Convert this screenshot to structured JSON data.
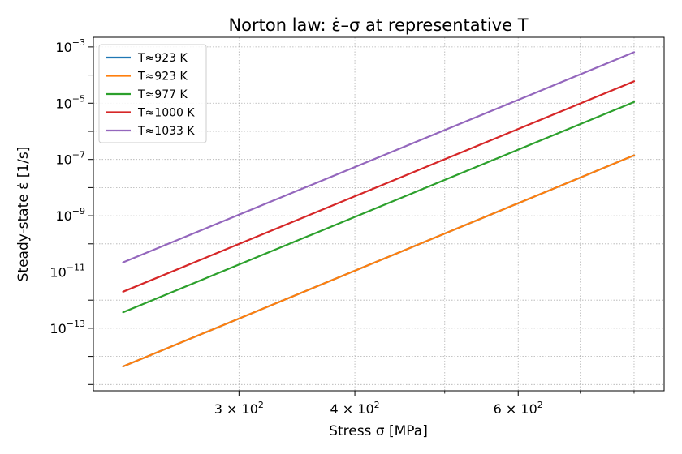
{
  "chart_data": {
    "type": "line",
    "title": "Norton law: ε̇–σ at representative T",
    "xlabel": "Stress σ [MPa]",
    "ylabel": "Steady-state ε̇ [1/s]",
    "xscale": "log",
    "yscale": "log",
    "xlim": [
      209,
      862
    ],
    "ylim": [
      6e-16,
      0.0022
    ],
    "grid": true,
    "legend_loc": "upper left",
    "x_major_ticks": [
      {
        "value": 300,
        "mantissa": "3",
        "base": "10",
        "exp": "2"
      },
      {
        "value": 400,
        "mantissa": "4",
        "base": "10",
        "exp": "2"
      },
      {
        "value": 600,
        "mantissa": "6",
        "base": "10",
        "exp": "2"
      }
    ],
    "x_minor_ticks": [
      500,
      700,
      800
    ],
    "y_ticks": [
      {
        "value": 0.001,
        "base": "10",
        "exp": "−3"
      },
      {
        "value": 1e-05,
        "base": "10",
        "exp": "−5"
      },
      {
        "value": 1e-07,
        "base": "10",
        "exp": "−7"
      },
      {
        "value": 1e-09,
        "base": "10",
        "exp": "−9"
      },
      {
        "value": 1e-11,
        "base": "10",
        "exp": "−11"
      },
      {
        "value": 1e-13,
        "base": "10",
        "exp": "−13"
      }
    ],
    "x": [
      225,
      800
    ],
    "series": [
      {
        "name": "T≈923 K",
        "color": "#1f77b4",
        "values": [
          4.4e-15,
          1.4e-07
        ]
      },
      {
        "name": "T≈923 K",
        "color": "#ff7f0e",
        "values": [
          4.4e-15,
          1.4e-07
        ]
      },
      {
        "name": "T≈977 K",
        "color": "#2ca02c",
        "values": [
          3.7e-13,
          1.1e-05
        ]
      },
      {
        "name": "T≈1000 K",
        "color": "#d62728",
        "values": [
          2e-12,
          6e-05
        ]
      },
      {
        "name": "T≈1033 K",
        "color": "#9467bd",
        "values": [
          2.2e-11,
          0.00065
        ]
      }
    ]
  }
}
